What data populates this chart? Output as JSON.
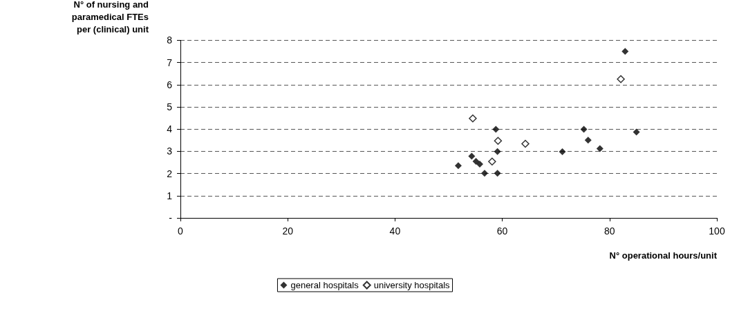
{
  "chart_data": {
    "type": "scatter",
    "xlabel": "N° operational hours/unit",
    "ylabel": "N° of nursing and\nparamedical FTEs\nper (clinical) unit",
    "xlim": [
      0,
      100
    ],
    "xticks": [
      0,
      20,
      40,
      60,
      80,
      100
    ],
    "ylim": [
      0,
      8
    ],
    "yticks": [
      {
        "value": 0,
        "label": "-"
      },
      1,
      2,
      3,
      4,
      5,
      6,
      7,
      8
    ],
    "grid": "y",
    "legend": "bottom",
    "marker": "diamond",
    "series": [
      {
        "name": "general hospitals",
        "color": "#000000",
        "x": [
          51.8,
          54.3,
          55.1,
          55.8,
          56.7,
          59.1,
          59.1,
          58.8,
          71.2,
          75.2,
          76.0,
          78.2,
          85.0,
          82.9
        ],
        "values": [
          2.35,
          2.78,
          2.55,
          2.42,
          2.01,
          2.01,
          2.99,
          3.99,
          2.98,
          3.99,
          3.5,
          3.12,
          3.87,
          7.5
        ]
      },
      {
        "name": "university hospitals",
        "color": "#ffffff",
        "x": [
          58.1,
          54.5,
          59.2,
          64.3,
          82.1
        ],
        "values": [
          2.54,
          4.48,
          3.47,
          3.34,
          6.25
        ]
      }
    ]
  }
}
